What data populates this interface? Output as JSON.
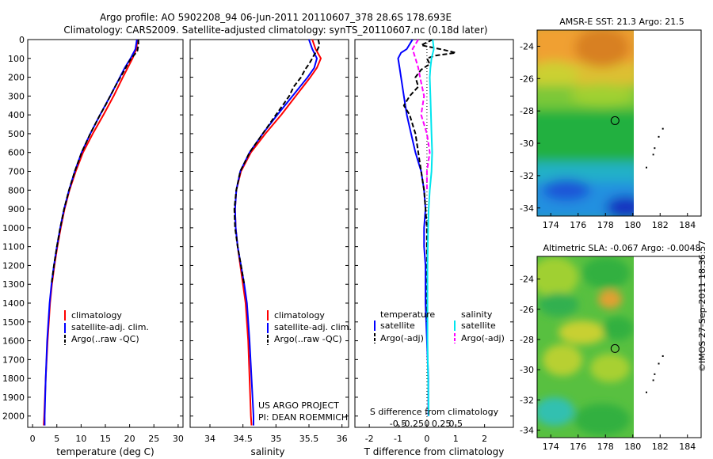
{
  "header": {
    "title_line1": "Argo profile: AO 5902208_94 06-Jun-2011 20110607_378 28.6S 178.693E",
    "title_line2": "Climatology: CARS2009. Satellite-adjusted climatology: synTS_20110607.nc (0.18d later)"
  },
  "footer": {
    "project": "US ARGO PROJECT",
    "pi": "PI: DEAN ROEMMICH",
    "stamp": "©IMOS 27-Sep-2011 18:36:57"
  },
  "colors": {
    "climatology": "#ff0000",
    "satellite": "#0000ff",
    "argo": "#000000",
    "sal_satellite": "#00e5ee",
    "sal_argo": "#ff00ff"
  },
  "chart_data": [
    {
      "id": "temperature",
      "type": "line",
      "xlabel": "temperature (deg C)",
      "ylabel": "",
      "xlim": [
        -1,
        31
      ],
      "ylim": [
        2060,
        0
      ],
      "xticks": [
        0,
        5,
        10,
        15,
        20,
        25,
        30
      ],
      "yticks": [
        0,
        100,
        200,
        300,
        400,
        500,
        600,
        700,
        800,
        900,
        1000,
        1100,
        1200,
        1300,
        1400,
        1500,
        1600,
        1700,
        1800,
        1900,
        2000
      ],
      "legend": [
        "climatology",
        "satellite-adj. clim.",
        "Argo(..raw -QC)"
      ],
      "legend_placement": "lower-right",
      "series": [
        {
          "name": "climatology",
          "color": "#ff0000",
          "dash": "",
          "depth": [
            0,
            50,
            100,
            150,
            200,
            300,
            400,
            500,
            600,
            700,
            800,
            900,
            1000,
            1100,
            1200,
            1300,
            1400,
            1600,
            1800,
            2000,
            2050
          ],
          "value": [
            21.6,
            21.4,
            20.6,
            19.6,
            18.6,
            16.7,
            14.6,
            12.4,
            10.4,
            8.9,
            7.6,
            6.6,
            5.8,
            5.1,
            4.5,
            4.0,
            3.6,
            3.1,
            2.7,
            2.4,
            2.3
          ]
        },
        {
          "name": "satellite-adj. clim.",
          "color": "#0000ff",
          "dash": "",
          "depth": [
            0,
            50,
            100,
            150,
            200,
            300,
            400,
            500,
            600,
            700,
            800,
            900,
            1000,
            1100,
            1200,
            1300,
            1400,
            1600,
            1800,
            2000,
            2050
          ],
          "value": [
            21.5,
            21.2,
            20.2,
            19.0,
            18.0,
            16.0,
            13.9,
            11.9,
            10.1,
            8.7,
            7.5,
            6.5,
            5.7,
            5.0,
            4.4,
            3.9,
            3.5,
            3.0,
            2.7,
            2.5,
            2.5
          ]
        },
        {
          "name": "Argo(..raw -QC)",
          "color": "#000000",
          "dash": "6,3",
          "depth": [
            0,
            30,
            60,
            80,
            100,
            130,
            160,
            200,
            250,
            300,
            350,
            400,
            450,
            500,
            600,
            700,
            800,
            900,
            1000,
            1100,
            1200,
            1300
          ],
          "value": [
            21.8,
            21.8,
            21.6,
            21.0,
            20.3,
            19.6,
            19.0,
            18.1,
            17.0,
            16.0,
            15.0,
            13.9,
            12.9,
            11.9,
            10.1,
            8.7,
            7.5,
            6.5,
            5.7,
            5.0,
            4.4,
            3.9
          ]
        }
      ]
    },
    {
      "id": "salinity",
      "type": "line",
      "xlabel": "salinity",
      "ylabel": "",
      "xlim": [
        33.7,
        36.1
      ],
      "ylim": [
        2060,
        0
      ],
      "xticks": [
        34,
        34.5,
        35,
        35.5,
        36
      ],
      "xtick_labels": [
        "34",
        "34.5",
        "35",
        "35.5",
        "36"
      ],
      "legend": [
        "climatology",
        "satellite-adj. clim.",
        "Argo(..raw -QC)"
      ],
      "legend_placement": "lower-right",
      "series": [
        {
          "name": "climatology",
          "color": "#ff0000",
          "dash": "",
          "depth": [
            0,
            50,
            100,
            150,
            200,
            300,
            400,
            500,
            600,
            700,
            800,
            900,
            1000,
            1100,
            1200,
            1300,
            1400,
            1600,
            1800,
            2000,
            2050
          ],
          "value": [
            35.55,
            35.6,
            35.68,
            35.62,
            35.52,
            35.3,
            35.08,
            34.84,
            34.62,
            34.47,
            34.4,
            34.38,
            34.39,
            34.42,
            34.46,
            34.5,
            34.54,
            34.58,
            34.6,
            34.62,
            34.63
          ]
        },
        {
          "name": "satellite-adj. clim.",
          "color": "#0000ff",
          "dash": "",
          "depth": [
            0,
            50,
            100,
            150,
            200,
            300,
            400,
            500,
            600,
            700,
            800,
            900,
            1000,
            1100,
            1200,
            1300,
            1400,
            1600,
            1800,
            2000,
            2050
          ],
          "value": [
            35.5,
            35.55,
            35.62,
            35.58,
            35.48,
            35.25,
            35.02,
            34.8,
            34.6,
            34.46,
            34.4,
            34.38,
            34.39,
            34.42,
            34.47,
            34.52,
            34.56,
            34.6,
            34.63,
            34.66,
            34.66
          ]
        },
        {
          "name": "Argo(..raw -QC)",
          "color": "#000000",
          "dash": "6,3",
          "depth": [
            0,
            30,
            60,
            80,
            100,
            130,
            160,
            200,
            250,
            300,
            350,
            400,
            500,
            600,
            700,
            800,
            900,
            1000,
            1100,
            1200,
            1300
          ],
          "value": [
            35.64,
            35.66,
            35.62,
            35.58,
            35.55,
            35.5,
            35.44,
            35.38,
            35.27,
            35.2,
            35.1,
            35.0,
            34.8,
            34.6,
            34.46,
            34.4,
            34.37,
            34.38,
            34.42,
            34.47,
            34.52
          ]
        }
      ]
    },
    {
      "id": "difference",
      "type": "line",
      "xlabel": "T difference from climatology",
      "top_label": "S difference from climatology",
      "ylabel": "",
      "xlim": [
        -2.5,
        3
      ],
      "ylim": [
        2060,
        0
      ],
      "xticks_T": [
        -2,
        -1,
        0,
        1,
        2
      ],
      "xtick_labels_S": [
        "-0.5",
        "-0.25",
        "0",
        "0.25",
        "0.5"
      ],
      "legend_temperature": {
        "title": "temperature",
        "items": [
          "satellite",
          "Argo(-adj)"
        ]
      },
      "legend_salinity": {
        "title": "salinity",
        "items": [
          "satellite",
          "Argo(-adj)"
        ]
      },
      "legend_placement": "lower-center",
      "series": [
        {
          "name": "T satellite",
          "color": "#0000ff",
          "dash": "",
          "depth": [
            0,
            50,
            70,
            100,
            150,
            200,
            300,
            400,
            500,
            600,
            700,
            800,
            900,
            1000,
            1100,
            1200,
            1300,
            1400,
            1600,
            1800,
            2000
          ],
          "value": [
            -0.5,
            -0.7,
            -0.9,
            -1.0,
            -0.95,
            -0.9,
            -0.8,
            -0.7,
            -0.55,
            -0.4,
            -0.2,
            -0.1,
            -0.05,
            -0.1,
            -0.1,
            -0.05,
            -0.05,
            -0.05,
            0.0,
            0.05,
            0.05
          ]
        },
        {
          "name": "T Argo(-adj)",
          "color": "#000000",
          "dash": "6,3",
          "depth": [
            0,
            30,
            55,
            70,
            85,
            100,
            130,
            160,
            200,
            250,
            300,
            350,
            400,
            450,
            500,
            600,
            700,
            800,
            900,
            1000,
            1100,
            1200,
            1300,
            1400,
            1500
          ],
          "value": [
            0.2,
            -0.2,
            0.6,
            1.0,
            0.3,
            0.0,
            0.1,
            -0.2,
            -0.4,
            -0.3,
            -0.6,
            -0.8,
            -0.6,
            -0.5,
            -0.4,
            -0.3,
            -0.2,
            -0.1,
            -0.05,
            0.0,
            0.0,
            0.0,
            0.0,
            0.0,
            0.0
          ]
        },
        {
          "name": "S satellite",
          "color": "#00e5ee",
          "dash": "",
          "depth": [
            0,
            50,
            100,
            150,
            200,
            300,
            400,
            500,
            600,
            700,
            800,
            900,
            1000,
            1200,
            1400,
            1600,
            1800,
            2000
          ],
          "value": [
            0.1,
            0.12,
            0.08,
            0.06,
            0.05,
            0.06,
            0.07,
            0.08,
            0.09,
            0.08,
            0.05,
            0.03,
            0.02,
            0.01,
            0.01,
            0.01,
            0.02,
            0.03
          ]
        },
        {
          "name": "S Argo(-adj)",
          "color": "#ff00ff",
          "dash": "6,3",
          "depth": [
            0,
            50,
            100,
            150,
            200,
            300,
            400,
            500,
            600,
            700,
            800
          ],
          "value": [
            -0.15,
            -0.25,
            -0.2,
            -0.15,
            -0.12,
            -0.05,
            -0.1,
            0.0,
            0.05,
            0.0,
            0.0
          ]
        }
      ]
    },
    {
      "id": "sst-map",
      "type": "heatmap",
      "title": "AMSR-E SST: 21.3 Argo: 21.5",
      "xlim": [
        173,
        185
      ],
      "ylim": [
        -34.5,
        -23
      ],
      "xticks": [
        174,
        176,
        178,
        180,
        182,
        184
      ],
      "yticks": [
        -24,
        -26,
        -28,
        -30,
        -32,
        -34
      ],
      "marker": {
        "lon": 178.7,
        "lat": -28.6
      },
      "data_extent_lon": [
        173,
        180
      ],
      "island_points": [
        [
          182.2,
          -29.1
        ],
        [
          181.9,
          -29.6
        ],
        [
          181.6,
          -30.3
        ],
        [
          181.5,
          -30.7
        ],
        [
          181.0,
          -31.5
        ]
      ]
    },
    {
      "id": "sla-map",
      "type": "heatmap",
      "title": "Altimetric SLA: -0.067 Argo: -0.0048",
      "xlim": [
        173,
        185
      ],
      "ylim": [
        -34.5,
        -22.5
      ],
      "xticks": [
        174,
        176,
        178,
        180,
        182,
        184
      ],
      "yticks": [
        -24,
        -26,
        -28,
        -30,
        -32,
        -34
      ],
      "marker": {
        "lon": 178.7,
        "lat": -28.6
      },
      "data_extent_lon": [
        173,
        180
      ],
      "island_points": [
        [
          182.2,
          -29.1
        ],
        [
          181.9,
          -29.6
        ],
        [
          181.6,
          -30.3
        ],
        [
          181.5,
          -30.7
        ],
        [
          181.0,
          -31.5
        ]
      ]
    }
  ]
}
